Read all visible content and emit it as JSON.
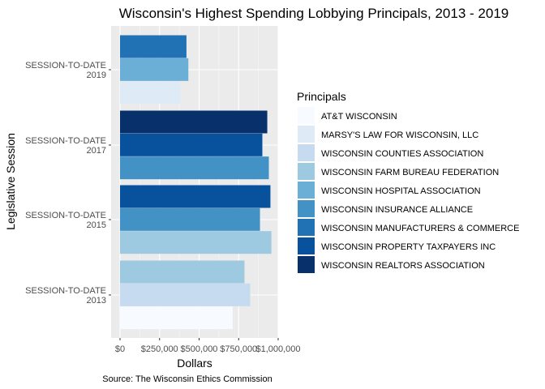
{
  "chart_data": {
    "type": "bar",
    "orientation": "horizontal",
    "title": "Wisconsin's Highest Spending Lobbying Principals, 2013 - 2019",
    "xlabel": "Dollars",
    "ylabel": "Legislative Session",
    "caption": "Source: The Wisconsin Ethics Commission",
    "xlim": [
      0,
      1050000
    ],
    "x_ticks": [
      {
        "value": 0,
        "label": "$0"
      },
      {
        "value": 250000,
        "label": "$250,000"
      },
      {
        "value": 500000,
        "label": "$500,000"
      },
      {
        "value": 750000,
        "label": "$750,000"
      },
      {
        "value": 1000000,
        "label": "$1,000,000"
      }
    ],
    "grid": true,
    "legend": {
      "title": "Principals",
      "position": "right",
      "entries": [
        {
          "name": "AT&T WISCONSIN",
          "color": "#f7fbff"
        },
        {
          "name": "MARSY'S LAW FOR WISCONSIN, LLC",
          "color": "#deebf7"
        },
        {
          "name": "WISCONSIN COUNTIES ASSOCIATION",
          "color": "#c6dbef"
        },
        {
          "name": "WISCONSIN FARM BUREAU FEDERATION",
          "color": "#9ecae1"
        },
        {
          "name": "WISCONSIN HOSPITAL ASSOCIATION",
          "color": "#6baed6"
        },
        {
          "name": "WISCONSIN INSURANCE ALLIANCE",
          "color": "#4292c6"
        },
        {
          "name": "WISCONSIN MANUFACTURERS & COMMERCE",
          "color": "#2171b5"
        },
        {
          "name": "WISCONSIN PROPERTY TAXPAYERS INC",
          "color": "#08519c"
        },
        {
          "name": "WISCONSIN REALTORS ASSOCIATION",
          "color": "#08306b"
        }
      ]
    },
    "sessions": [
      {
        "label": [
          "SESSION-TO-DATE",
          "2019"
        ],
        "bars": [
          {
            "principal": "WISCONSIN MANUFACTURERS & COMMERCE",
            "value": 420000
          },
          {
            "principal": "WISCONSIN HOSPITAL ASSOCIATION",
            "value": 432000
          },
          {
            "principal": "MARSY'S LAW FOR WISCONSIN, LLC",
            "value": 382000
          }
        ]
      },
      {
        "label": [
          "SESSION-TO-DATE",
          "2017"
        ],
        "bars": [
          {
            "principal": "WISCONSIN REALTORS ASSOCIATION",
            "value": 931000
          },
          {
            "principal": "WISCONSIN PROPERTY TAXPAYERS INC",
            "value": 900000
          },
          {
            "principal": "WISCONSIN INSURANCE ALLIANCE",
            "value": 941000
          }
        ]
      },
      {
        "label": [
          "SESSION-TO-DATE",
          "2015"
        ],
        "bars": [
          {
            "principal": "WISCONSIN PROPERTY TAXPAYERS INC",
            "value": 951000
          },
          {
            "principal": "WISCONSIN INSURANCE ALLIANCE",
            "value": 885000
          },
          {
            "principal": "WISCONSIN FARM BUREAU FEDERATION",
            "value": 957000
          }
        ]
      },
      {
        "label": [
          "SESSION-TO-DATE",
          "2013"
        ],
        "bars": [
          {
            "principal": "WISCONSIN FARM BUREAU FEDERATION",
            "value": 787000
          },
          {
            "principal": "WISCONSIN COUNTIES ASSOCIATION",
            "value": 823000
          },
          {
            "principal": "AT&T WISCONSIN",
            "value": 712000
          }
        ]
      }
    ]
  }
}
